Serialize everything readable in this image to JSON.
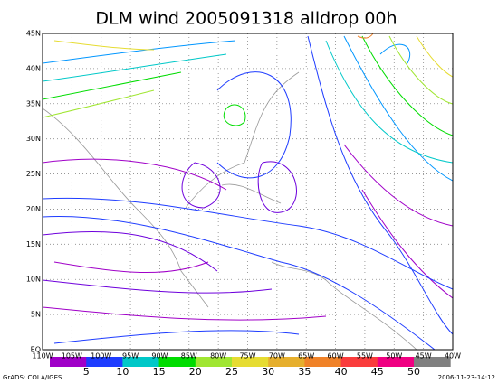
{
  "title": "DLM wind 2005091318 alldrop 00h",
  "lon_labels": [
    "110W",
    "105W",
    "100W",
    "95W",
    "90W",
    "85W",
    "80W",
    "75W",
    "70W",
    "65W",
    "60W",
    "55W",
    "50W",
    "45W",
    "40W"
  ],
  "lat_labels": [
    "EQ",
    "5N",
    "10N",
    "15N",
    "20N",
    "25N",
    "30N",
    "35N",
    "40N",
    "45N"
  ],
  "colorbar": {
    "colors": [
      "#a000c8",
      "#1e3cff",
      "#00c8c8",
      "#00dc00",
      "#a0e632",
      "#e6dc32",
      "#e6af2d",
      "#f08228",
      "#fa3c3c",
      "#f00082",
      "#808080"
    ],
    "labels": [
      5,
      10,
      15,
      20,
      25,
      30,
      35,
      40,
      45,
      50
    ]
  },
  "footer": {
    "left": "GrADS: COLA/IGES",
    "right": "2006-11-23-14:12"
  }
}
